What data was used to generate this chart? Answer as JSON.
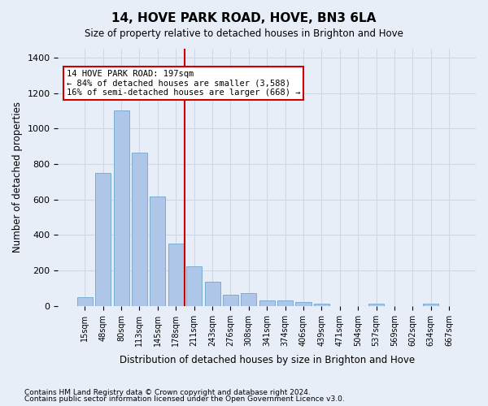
{
  "title": "14, HOVE PARK ROAD, HOVE, BN3 6LA",
  "subtitle": "Size of property relative to detached houses in Brighton and Hove",
  "xlabel": "Distribution of detached houses by size in Brighton and Hove",
  "ylabel": "Number of detached properties",
  "footnote1": "Contains HM Land Registry data © Crown copyright and database right 2024.",
  "footnote2": "Contains public sector information licensed under the Open Government Licence v3.0.",
  "bar_labels": [
    "15sqm",
    "48sqm",
    "80sqm",
    "113sqm",
    "145sqm",
    "178sqm",
    "211sqm",
    "243sqm",
    "276sqm",
    "308sqm",
    "341sqm",
    "374sqm",
    "406sqm",
    "439sqm",
    "471sqm",
    "504sqm",
    "537sqm",
    "569sqm",
    "602sqm",
    "634sqm",
    "667sqm"
  ],
  "bar_values": [
    50,
    750,
    1100,
    865,
    615,
    350,
    225,
    135,
    65,
    70,
    32,
    32,
    22,
    15,
    0,
    0,
    12,
    0,
    0,
    12,
    0
  ],
  "bar_color": "#aec6e8",
  "bar_edge_color": "#7aadd4",
  "grid_color": "#d0d8e8",
  "background_color": "#e8eef8",
  "property_size": 197,
  "property_label": "14 HOVE PARK ROAD: 197sqm",
  "annotation_line1": "← 84% of detached houses are smaller (3,588)",
  "annotation_line2": "16% of semi-detached houses are larger (668) →",
  "vline_position": 6,
  "vline_color": "#cc0000",
  "annotation_box_color": "#ffffff",
  "annotation_box_edge": "#cc0000",
  "ylim": [
    0,
    1450
  ],
  "yticks": [
    0,
    200,
    400,
    600,
    800,
    1000,
    1200,
    1400
  ]
}
